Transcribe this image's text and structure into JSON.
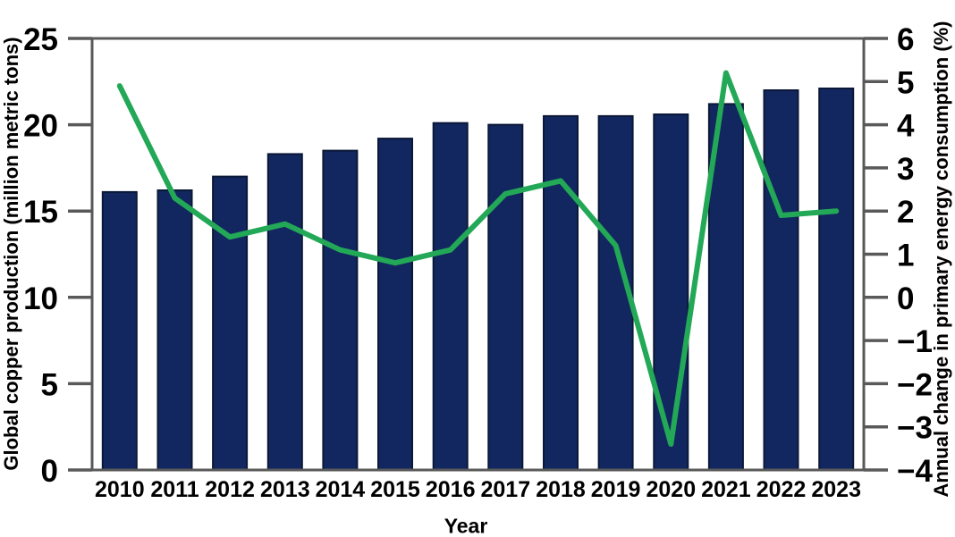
{
  "chart_data": {
    "type": "combo-bar-line",
    "title": "",
    "categories": [
      "2010",
      "2011",
      "2012",
      "2013",
      "2014",
      "2015",
      "2016",
      "2017",
      "2018",
      "2019",
      "2020",
      "2021",
      "2022",
      "2023"
    ],
    "series": [
      {
        "name": "Global copper production",
        "type": "bar",
        "axis": "left",
        "values": [
          16.1,
          16.2,
          17.0,
          18.3,
          18.5,
          19.2,
          20.1,
          20.0,
          20.5,
          20.5,
          20.6,
          21.2,
          22.0,
          22.1
        ],
        "color": "#12275f",
        "edge_color": "#0a1736"
      },
      {
        "name": "Annual change in primary energy consumption",
        "type": "line",
        "axis": "right",
        "values": [
          4.9,
          2.3,
          1.4,
          1.7,
          1.1,
          0.8,
          1.1,
          2.4,
          2.7,
          1.2,
          -3.4,
          5.2,
          1.9,
          2.0
        ],
        "color": "#22a856"
      }
    ],
    "left_axis": {
      "label": "Global copper production (million metric tons)",
      "range": [
        0,
        25
      ],
      "ticks": [
        0,
        5,
        10,
        15,
        20,
        25
      ]
    },
    "right_axis": {
      "label": "Annual change in primary energy consumption (%)",
      "range": [
        -4,
        6
      ],
      "ticks": [
        -4,
        -3,
        -2,
        -1,
        0,
        1,
        2,
        3,
        4,
        5,
        6
      ]
    },
    "x_axis": {
      "label": "Year"
    },
    "grid": false,
    "legend": "none",
    "background": "#ffffff",
    "frame_color": "#595959",
    "text_color": "#000000"
  }
}
